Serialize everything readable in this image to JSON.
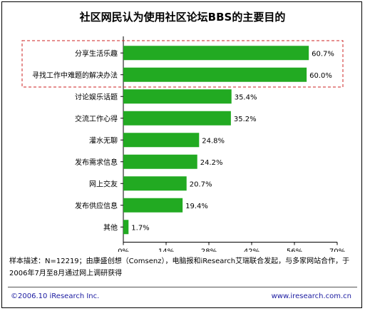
{
  "title": "社区网民认为使用社区论坛BBS的主要目的",
  "chart_data": {
    "type": "bar",
    "orientation": "horizontal",
    "categories": [
      "分享生活乐趣",
      "寻找工作中难题的解决办法",
      "讨论娱乐话题",
      "交流工作心得",
      "灌水无聊",
      "发布需求信息",
      "网上交友",
      "发布供应信息",
      "其他"
    ],
    "values": [
      60.7,
      60.0,
      35.4,
      35.2,
      24.8,
      24.2,
      20.7,
      19.4,
      1.7
    ],
    "value_labels": [
      "60.7%",
      "60.0%",
      "35.4%",
      "35.2%",
      "24.8%",
      "24.2%",
      "20.7%",
      "19.4%",
      "1.7%"
    ],
    "xlim": [
      0,
      70
    ],
    "xticks": [
      "0%",
      "14%",
      "28%",
      "42%",
      "56%",
      "70%"
    ],
    "bar_color": "#22aa22",
    "highlight": {
      "categories": [
        "分享生活乐趣",
        "寻找工作中难题的解决办法"
      ],
      "color": "#cc2222",
      "style": "dashed-box"
    },
    "grid": false,
    "legend": "none"
  },
  "note": "样本描述：N=12219；由康盛创想（Comsenz），电脑报和iResearch艾瑞联合发起，与多家网站合作，于2006年7月至8月通过网上调研获得",
  "copyright": "©2006.10 iResearch Inc.",
  "website": "www.iresearch.com.cn"
}
